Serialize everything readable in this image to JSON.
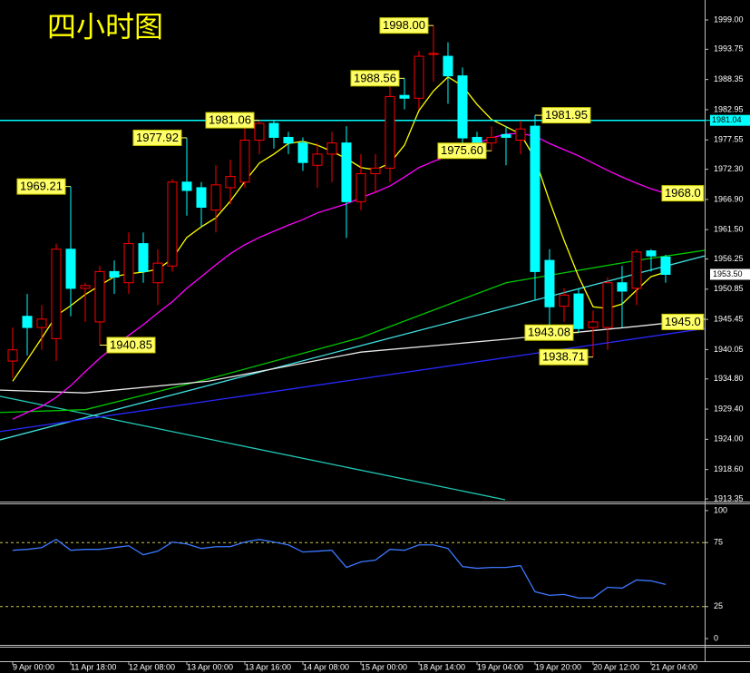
{
  "chart_data": [
    {
      "type": "candlestick",
      "title": "四小时图",
      "title_color": "#ffff00",
      "categories": [
        "9 Apr 00:00",
        null,
        null,
        null,
        "11 Apr 18:00",
        null,
        null,
        null,
        "12 Apr 08:00",
        null,
        null,
        null,
        "13 Apr 00:00",
        null,
        null,
        null,
        "13 Apr 16:00",
        null,
        null,
        null,
        "14 Apr 08:00",
        null,
        null,
        null,
        "15 Apr 00:00",
        null,
        null,
        null,
        "18 Apr 14:00",
        null,
        null,
        null,
        "19 Apr 04:00",
        null,
        null,
        null,
        "19 Apr 20:00",
        null,
        null,
        null,
        "20 Apr 12:00",
        null,
        null,
        null,
        "21 Apr 04:00",
        null
      ],
      "open": [
        1938,
        1946,
        1944,
        1942,
        1958,
        1951,
        1945,
        1954,
        1952,
        1959,
        1952,
        1955,
        1970,
        1969,
        1965,
        1969,
        1970,
        1977.5,
        1980.5,
        1978,
        1977,
        1973,
        1975,
        1977,
        1966.5,
        1971.5,
        1972.5,
        1985.5,
        1985,
        1993,
        1992.5,
        1989,
        1978,
        1977,
        1978.5,
        1977.5,
        1980,
        1956,
        1947.8,
        1950,
        1944,
        1944,
        1952,
        1951,
        1957.7,
        1956.6
      ],
      "high": [
        1944,
        1950,
        1948,
        1959,
        1969.21,
        1952,
        1955,
        1956,
        1961,
        1961,
        1958,
        1970.5,
        1977.92,
        1970,
        1973,
        1974,
        1980,
        1981.06,
        1981,
        1979,
        1978,
        1977,
        1979,
        1980,
        1975,
        1975,
        1989,
        1988.56,
        1993.5,
        1998,
        1995,
        1990.5,
        1979,
        1980,
        1980,
        1981,
        1981.95,
        1958,
        1951,
        1951,
        1947,
        1953,
        1955,
        1958,
        1958,
        1957
      ],
      "low": [
        1935,
        1939,
        1940,
        1938,
        1946,
        1945,
        1940.85,
        1950,
        1950,
        1952,
        1948,
        1954,
        1964,
        1962,
        1961,
        1966,
        1969,
        1975,
        1976,
        1975,
        1972,
        1969,
        1970,
        1960,
        1965,
        1968,
        1970,
        1983,
        1983,
        1988,
        1984,
        1976,
        1976,
        1975.6,
        1973,
        1975,
        1949,
        1944,
        1945,
        1943.08,
        1938.71,
        1940,
        1944,
        1948,
        1954,
        1952
      ],
      "close": [
        1940,
        1944,
        1945.5,
        1958,
        1951,
        1951.5,
        1954,
        1953,
        1959,
        1954,
        1955.5,
        1970,
        1968.5,
        1965.5,
        1969.5,
        1971,
        1977.5,
        1980.5,
        1978,
        1977,
        1973.5,
        1975,
        1977,
        1966.5,
        1971.5,
        1972.5,
        1985.3,
        1985,
        1992.5,
        1993,
        1989,
        1977.9,
        1977,
        1978,
        1978,
        1979.5,
        1954,
        1947.7,
        1949.8,
        1943.8,
        1945,
        1952,
        1950.5,
        1957.5,
        1956.8,
        1953.5
      ],
      "up_color": "#ff0000",
      "down_color": "#00ffff",
      "series": [
        {
          "color": "#ffff00",
          "values": [
            1934.4,
            1938.2,
            1942.1,
            1946.1,
            1947.9,
            1949.9,
            1951.5,
            1953.1,
            1953.6,
            1953.9,
            1954.4,
            1956.3,
            1960.1,
            1962.0,
            1963.6,
            1966.6,
            1970.1,
            1973.4,
            1975.0,
            1976.9,
            1977.3,
            1976.6,
            1975.5,
            1974.2,
            1972.6,
            1972.2,
            1973.4,
            1976.6,
            1982.8,
            1986.3,
            1988.8,
            1987.2,
            1983.9,
            1981.2,
            1979.9,
            1978.6,
            1974.2,
            1966.6,
            1959.6,
            1953.1,
            1947.7,
            1947.4,
            1948.2,
            1950.7,
            1953.1,
            1953.9
          ]
        },
        {
          "color": "#ff00ff",
          "values": [
            1927.6,
            1928.8,
            1929.9,
            1931.5,
            1933.6,
            1936.1,
            1938.5,
            1940.6,
            1942.6,
            1944.5,
            1946.6,
            1948.6,
            1951.0,
            1953.1,
            1955.2,
            1957.2,
            1958.8,
            1960.1,
            1961.2,
            1962.3,
            1963.3,
            1964.5,
            1965.3,
            1966.1,
            1967.2,
            1968.2,
            1969.3,
            1970.9,
            1972.6,
            1973.7,
            1974.7,
            1975.8,
            1976.9,
            1977.9,
            1978.6,
            1978.7,
            1978.2,
            1976.9,
            1975.8,
            1974.7,
            1973.4,
            1972.1,
            1970.9,
            1969.8,
            1968.8,
            1968.0
          ]
        }
      ],
      "lines": [
        {
          "color": "#20c8b4",
          "x": [
            -0.875,
            33.94
          ],
          "values": [
            1931.7,
            1913.2
          ]
        },
        {
          "color": "#40e0e0",
          "x": [
            -0.875,
            47.69
          ],
          "values": [
            1923.9,
            1956.8
          ]
        },
        {
          "color": "#2828ff",
          "x": [
            -0.875,
            47.69
          ],
          "values": [
            1925.4,
            1943.8
          ]
        },
        {
          "color": "#00c800",
          "x": [
            -0.875,
            5,
            13.5,
            24,
            34,
            43,
            47.69
          ],
          "values": [
            1928.8,
            1929.3,
            1934.8,
            1942.2,
            1952.0,
            1956.0,
            1957.8
          ]
        },
        {
          "color": "#e8e8e8",
          "x": [
            -0.875,
            5,
            13.5,
            24,
            34,
            43,
            47.69
          ],
          "values": [
            1932.8,
            1932.3,
            1934.4,
            1939.6,
            1941.9,
            1944.2,
            1945.5
          ]
        }
      ],
      "hline": {
        "value": 1981.04,
        "color": "#00ffff"
      },
      "price_label": {
        "value": 1953.5,
        "label": "1953.50"
      },
      "annotations": [
        {
          "x": 4,
          "y": 1969.21,
          "label": "1969.21",
          "side": "left"
        },
        {
          "x": 6,
          "y": 1940.85,
          "label": "1940.85",
          "side": "right"
        },
        {
          "x": 12,
          "y": 1977.92,
          "label": "1977.92",
          "side": "left"
        },
        {
          "x": 17,
          "y": 1981.06,
          "label": "1981.06",
          "side": "left"
        },
        {
          "x": 27,
          "y": 1988.56,
          "label": "1988.56",
          "side": "left"
        },
        {
          "x": 29,
          "y": 1998,
          "label": "1998.00",
          "side": "left"
        },
        {
          "x": 33,
          "y": 1975.6,
          "label": "1975.60",
          "side": "left"
        },
        {
          "x": 36,
          "y": 1981.95,
          "label": "1981.95",
          "side": "right"
        },
        {
          "x": 39,
          "y": 1943.08,
          "label": "1943.08",
          "side": "left"
        },
        {
          "x": 40,
          "y": 1938.71,
          "label": "1938.71",
          "side": "left"
        },
        {
          "x": 45,
          "y": 1968,
          "label": "1968.0",
          "side": "edge"
        },
        {
          "x": 45,
          "y": 1945,
          "label": "1945.0",
          "side": "edge"
        }
      ],
      "xlim": [
        -0.875,
        47.69
      ],
      "ylim": [
        1913.03,
        2002.24
      ],
      "yticks": [
        {
          "value": 1999,
          "label": "1999.00"
        },
        1993.75,
        1988.35,
        1982.95,
        1977.55,
        {
          "value": 1972.3,
          "label": "1972.30"
        },
        {
          "value": 1966.9,
          "label": "1966.90"
        },
        {
          "value": 1961.5,
          "label": "1961.50"
        },
        1956.25,
        1950.85,
        1945.45,
        1940.05,
        {
          "value": 1934.8,
          "label": "1934.80"
        },
        {
          "value": 1929.4,
          "label": "1929.40"
        },
        {
          "value": 1924,
          "label": "1924.00"
        },
        {
          "value": 1918.6,
          "label": "1918.60"
        },
        1913.35
      ]
    },
    {
      "type": "line",
      "series": [
        {
          "color": "#3c78ff",
          "values": [
            69.0,
            69.7,
            71.1,
            77.5,
            69.0,
            69.7,
            69.7,
            71.1,
            72.5,
            65.5,
            68.3,
            75.4,
            73.9,
            70.4,
            71.8,
            71.8,
            75.4,
            77.5,
            75.4,
            73.2,
            67.6,
            68.3,
            69.0,
            55.6,
            59.9,
            61.3,
            69.7,
            69.0,
            73.2,
            73.2,
            70.4,
            56.3,
            54.9,
            55.6,
            55.6,
            57.0,
            36.6,
            33.8,
            34.5,
            31.7,
            31.7,
            40.1,
            39.4,
            45.8,
            45.1,
            42.3
          ]
        }
      ],
      "levels": [
        75,
        25
      ],
      "level_color": "#c8c850",
      "ylim": [
        -4.9,
        104.9
      ],
      "yticks": [
        100,
        75,
        25,
        0
      ]
    }
  ]
}
